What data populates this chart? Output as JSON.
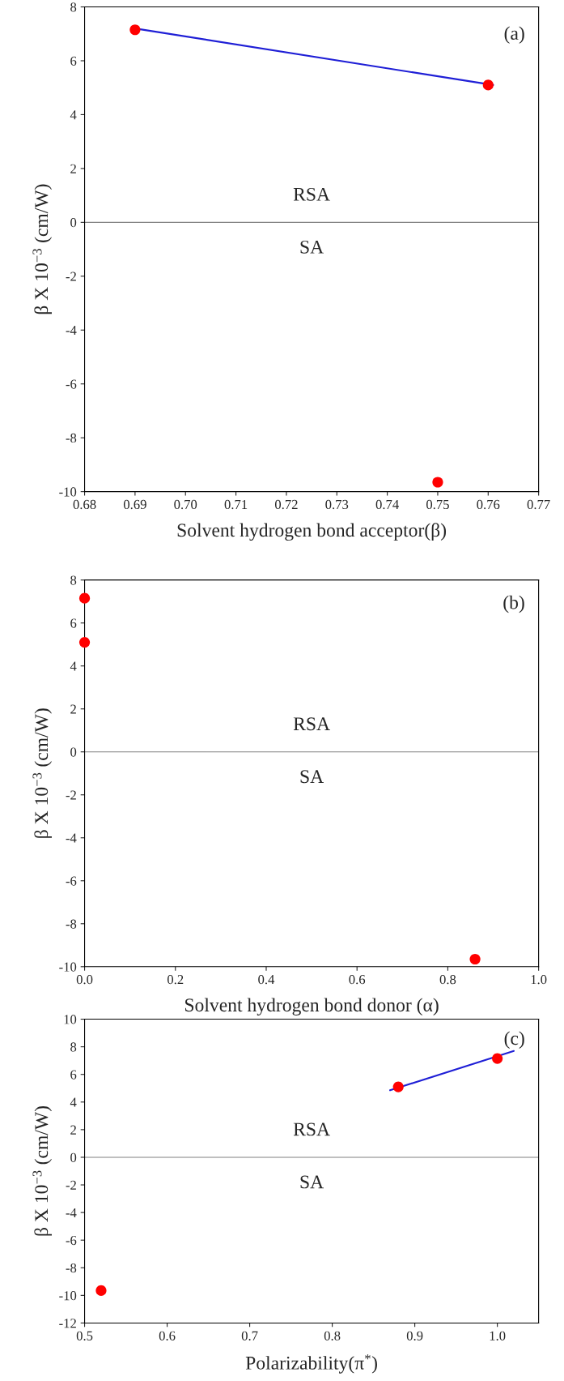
{
  "chart_data": [
    {
      "type": "scatter",
      "xlabel": "Solvent hydrogen bond acceptor(β)",
      "ylabel": "β X 10$^{−3}$ (cm/W)",
      "xlim": [
        0.68,
        0.77
      ],
      "xticks": [
        {
          "value": 0.68,
          "label": "0.68"
        },
        {
          "value": 0.69,
          "label": "0.69"
        },
        {
          "value": 0.7,
          "label": "0.70"
        },
        {
          "value": 0.71,
          "label": "0.71"
        },
        {
          "value": 0.72,
          "label": "0.72"
        },
        {
          "value": 0.73,
          "label": "0.73"
        },
        {
          "value": 0.74,
          "label": "0.74"
        },
        {
          "value": 0.75,
          "label": "0.75"
        },
        {
          "value": 0.76,
          "label": "0.76"
        },
        {
          "value": 0.77,
          "label": "0.77"
        }
      ],
      "ylim": [
        -10,
        8
      ],
      "yticks": [
        -10,
        -8,
        -6,
        -4,
        -2,
        0,
        2,
        4,
        6,
        8
      ],
      "series": [
        {
          "type": "line",
          "color": "#1f1fd6",
          "x": [
            0.69,
            0.761
          ],
          "values": [
            7.2,
            5.1
          ]
        },
        {
          "type": "scatter",
          "color": "#ff0000",
          "marker": "circle",
          "x": [
            0.69,
            0.76,
            0.75
          ],
          "values": [
            7.15,
            5.1,
            -9.65
          ]
        }
      ],
      "ref_lines": [
        {
          "axis": "y",
          "value": 0,
          "color": "#808080"
        }
      ],
      "annotations": [
        "(a)",
        "RSA",
        "SA"
      ]
    },
    {
      "type": "scatter",
      "xlabel": "Solvent hydrogen bond donor (α)",
      "ylabel": "β X 10$^{−3}$ (cm/W)",
      "xlim": [
        0,
        1.0
      ],
      "xticks": [
        {
          "value": 0,
          "label": "0.0"
        },
        0.2,
        0.4,
        0.6,
        0.8,
        {
          "value": 1.0,
          "label": "1.0"
        }
      ],
      "ylim": [
        -10,
        8
      ],
      "yticks": [
        -10,
        -8,
        -6,
        -4,
        -2,
        0,
        2,
        4,
        6,
        8
      ],
      "series": [
        {
          "type": "scatter",
          "color": "#ff0000",
          "marker": "circle",
          "x": [
            0,
            0,
            0.86
          ],
          "values": [
            7.15,
            5.1,
            -9.65
          ]
        }
      ],
      "ref_lines": [
        {
          "axis": "y",
          "value": 0,
          "color": "#808080"
        }
      ],
      "annotations": [
        "(b)",
        "RSA",
        "SA"
      ]
    },
    {
      "type": "scatter",
      "xlabel": "Polarizability(π$^{*}$)",
      "ylabel": "β X 10$^{−3}$ (cm/W)",
      "xlim": [
        0.5,
        1.05
      ],
      "xticks": [
        0.5,
        0.6,
        0.7,
        0.8,
        0.9,
        {
          "value": 1.0,
          "label": "1.0"
        }
      ],
      "ylim": [
        -12,
        10
      ],
      "yticks": [
        -12,
        -10,
        -8,
        -6,
        -4,
        -2,
        0,
        2,
        4,
        6,
        8,
        10
      ],
      "series": [
        {
          "type": "line",
          "color": "#1f1fd6",
          "x": [
            0.87,
            1.02
          ],
          "values": [
            4.85,
            7.7
          ]
        },
        {
          "type": "scatter",
          "color": "#ff0000",
          "marker": "circle",
          "x": [
            0.52,
            0.88,
            1.0
          ],
          "values": [
            -9.65,
            5.1,
            7.15
          ]
        }
      ],
      "ref_lines": [
        {
          "axis": "y",
          "value": 0,
          "color": "#808080"
        }
      ],
      "annotations": [
        "(c)",
        "RSA",
        "SA"
      ]
    }
  ]
}
